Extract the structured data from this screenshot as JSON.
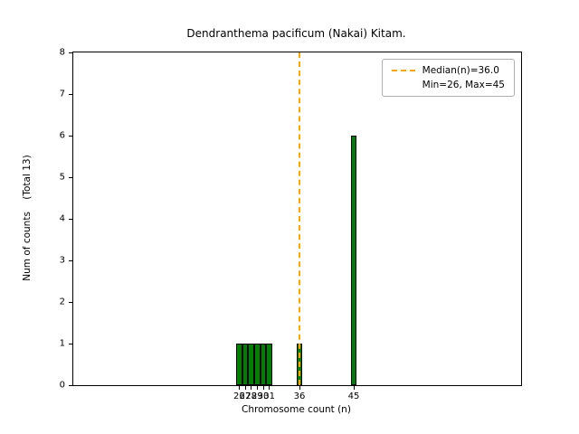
{
  "figure": {
    "background": "#ffffff",
    "title": "Dendranthema pacificum (Nakai) Kitam."
  },
  "chart_data": {
    "type": "bar",
    "title": "Dendranthema pacificum (Nakai) Kitam.",
    "xlabel": "Chromosome count (n)",
    "ylabel": "Num of counts    (Total 13)",
    "x": [
      26,
      27,
      28,
      29,
      30,
      31,
      36,
      45
    ],
    "values": [
      1,
      1,
      1,
      1,
      1,
      1,
      1,
      6
    ],
    "total_counts": 13,
    "bar_width": 1,
    "bar_color": "#008000",
    "bar_edge_color": "#000000",
    "xlim": [
      -1.5,
      72.75
    ],
    "ylim": [
      0,
      8
    ],
    "xticks": [
      26,
      27,
      28,
      29,
      30,
      31,
      36,
      45
    ],
    "yticks": [
      0,
      1,
      2,
      3,
      4,
      5,
      6,
      7,
      8
    ],
    "grid": false,
    "median_line": {
      "value": 36.0,
      "color": "#ffa500",
      "style": "dashed"
    },
    "legend": {
      "position": "upper right",
      "entries": [
        {
          "label": "Median(n)=36.0",
          "marker": "dashed-line",
          "color": "#ffa500"
        },
        {
          "label": "Min=26, Max=45",
          "marker": "none",
          "color": ""
        }
      ]
    },
    "stats": {
      "median": 36.0,
      "min": 26,
      "max": 45
    }
  }
}
